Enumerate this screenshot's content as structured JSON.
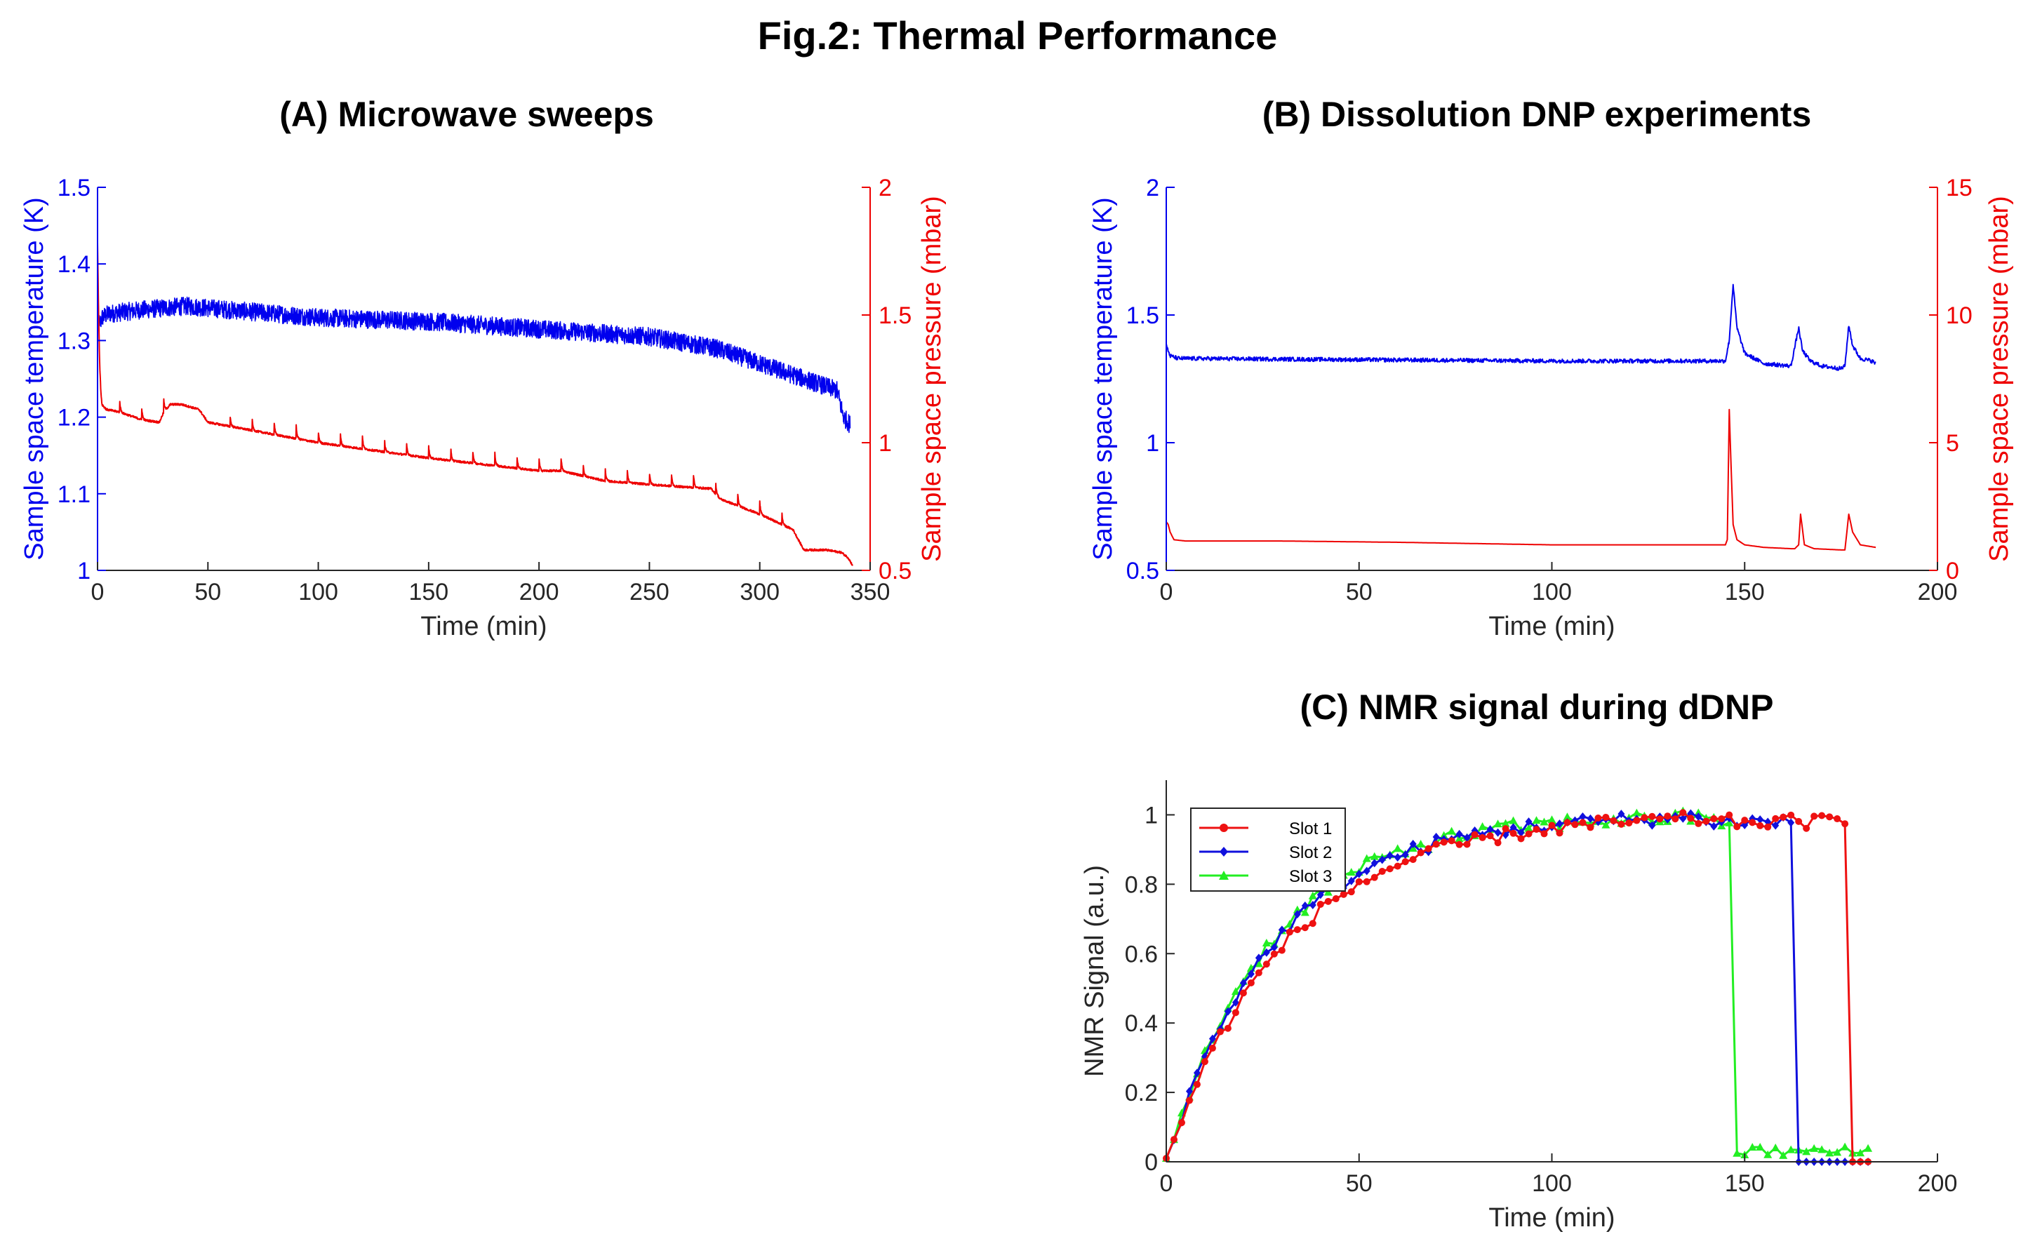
{
  "figure": {
    "title": "Fig.2: Thermal Performance"
  },
  "colors": {
    "temp": "#0000ee",
    "pressure": "#ee0000",
    "slot1": "#ee1111",
    "slot2": "#1010dd",
    "slot3": "#22ee22"
  },
  "chart_data": [
    {
      "id": "A",
      "type": "line",
      "title": "(A) Microwave sweeps",
      "xlabel": "Time (min)",
      "ylabel_left": "Sample space temperature (K)",
      "ylabel_right": "Sample space pressure (mbar)",
      "xlim": [
        0,
        350
      ],
      "xticks": [
        "0",
        "50",
        "100",
        "150",
        "200",
        "250",
        "300",
        "350"
      ],
      "xtick_values": [
        0,
        50,
        100,
        150,
        200,
        250,
        300,
        350
      ],
      "ylim_left": [
        1,
        1.5
      ],
      "yticks_left": [
        "1",
        "1.1",
        "1.2",
        "1.3",
        "1.4",
        "1.5"
      ],
      "ytick_values_left": [
        1,
        1.1,
        1.2,
        1.3,
        1.4,
        1.5
      ],
      "ylim_right": [
        0.5,
        2
      ],
      "yticks_right": [
        "0.5",
        "1",
        "1.5",
        "2"
      ],
      "ytick_values_right": [
        0.5,
        1,
        1.5,
        2
      ],
      "series": [
        {
          "name": "Temperature",
          "axis": "left",
          "color_key": "temp",
          "noise": 0.012,
          "x": [
            0,
            0.5,
            1,
            2,
            5,
            20,
            40,
            60,
            100,
            150,
            200,
            250,
            280,
            300,
            320,
            335,
            338,
            341
          ],
          "y": [
            1.37,
            1.33,
            1.32,
            1.33,
            1.335,
            1.34,
            1.345,
            1.34,
            1.33,
            1.325,
            1.315,
            1.305,
            1.29,
            1.27,
            1.25,
            1.235,
            1.2,
            1.19
          ]
        },
        {
          "name": "Pressure",
          "axis": "right",
          "color_key": "pressure",
          "noise": 0.004,
          "spikes": [
            10,
            20,
            30,
            60,
            70,
            80,
            90,
            100,
            110,
            120,
            130,
            140,
            150,
            160,
            170,
            180,
            190,
            200,
            210,
            220,
            230,
            240,
            250,
            260,
            270,
            280,
            290,
            300,
            310
          ],
          "x": [
            0,
            0.5,
            1,
            1.5,
            2,
            4,
            10,
            20,
            28,
            30,
            33,
            38,
            42,
            46,
            50,
            100,
            150,
            200,
            210,
            230,
            260,
            278,
            282,
            300,
            315,
            320,
            330,
            337,
            340,
            342
          ],
          "y": [
            1.78,
            1.5,
            1.3,
            1.2,
            1.15,
            1.13,
            1.12,
            1.09,
            1.08,
            1.12,
            1.15,
            1.15,
            1.14,
            1.13,
            1.08,
            1.0,
            0.94,
            0.89,
            0.89,
            0.85,
            0.83,
            0.82,
            0.78,
            0.72,
            0.66,
            0.58,
            0.58,
            0.57,
            0.55,
            0.52
          ]
        }
      ]
    },
    {
      "id": "B",
      "type": "line",
      "title": "(B) Dissolution DNP experiments",
      "xlabel": "Time (min)",
      "ylabel_left": "Sample space temperature (K)",
      "ylabel_right": "Sample space pressure (mbar)",
      "xlim": [
        0,
        200
      ],
      "xticks": [
        "0",
        "50",
        "100",
        "150",
        "200"
      ],
      "xtick_values": [
        0,
        50,
        100,
        150,
        200
      ],
      "ylim_left": [
        0.5,
        2
      ],
      "yticks_left": [
        "0.5",
        "1",
        "1.5",
        "2"
      ],
      "ytick_values_left": [
        0.5,
        1,
        1.5,
        2
      ],
      "ylim_right": [
        0,
        15
      ],
      "yticks_right": [
        "0",
        "5",
        "10",
        "15"
      ],
      "ytick_values_right": [
        0,
        5,
        10,
        15
      ],
      "series": [
        {
          "name": "Temperature",
          "axis": "left",
          "color_key": "temp",
          "noise": 0.008,
          "x": [
            0,
            0.5,
            1,
            3,
            50,
            100,
            145,
            146,
            147,
            148,
            150,
            155,
            162,
            164,
            165,
            167,
            170,
            175,
            176,
            177,
            178,
            180,
            183,
            184
          ],
          "y": [
            1.38,
            1.36,
            1.34,
            1.33,
            1.325,
            1.32,
            1.32,
            1.4,
            1.62,
            1.45,
            1.35,
            1.31,
            1.3,
            1.45,
            1.36,
            1.32,
            1.3,
            1.29,
            1.3,
            1.46,
            1.38,
            1.33,
            1.32,
            1.31
          ]
        },
        {
          "name": "Pressure",
          "axis": "right",
          "color_key": "pressure",
          "noise": 0,
          "x": [
            0,
            0.5,
            1,
            2,
            5,
            30,
            60,
            100,
            145,
            145.5,
            146,
            146.5,
            147,
            148,
            150,
            155,
            162,
            163,
            164,
            164.5,
            165.5,
            168,
            175,
            176,
            177,
            178,
            180,
            184
          ],
          "y": [
            1.9,
            1.8,
            1.5,
            1.2,
            1.15,
            1.15,
            1.1,
            1.0,
            1.0,
            1.2,
            6.3,
            4.0,
            1.8,
            1.2,
            1.0,
            0.9,
            0.85,
            0.85,
            1.0,
            2.2,
            1.0,
            0.85,
            0.8,
            0.8,
            2.2,
            1.5,
            1.0,
            0.9
          ]
        }
      ]
    },
    {
      "id": "C",
      "type": "line",
      "title": "(C) NMR signal during dDNP",
      "xlabel": "Time (min)",
      "ylabel": "NMR Signal (a.u.)",
      "xlim": [
        0,
        200
      ],
      "xticks": [
        "0",
        "50",
        "100",
        "150",
        "200"
      ],
      "xtick_values": [
        0,
        50,
        100,
        150,
        200
      ],
      "ylim": [
        0,
        1.1
      ],
      "yticks": [
        "0",
        "0.2",
        "0.4",
        "0.6",
        "0.8",
        "1"
      ],
      "ytick_values": [
        0,
        0.2,
        0.4,
        0.6,
        0.8,
        1
      ],
      "legend_location": "top-left",
      "series": [
        {
          "name": "Slot 1",
          "color_key": "slot1",
          "marker": "circle",
          "tau": 31,
          "end_time": 177,
          "final": 0.0
        },
        {
          "name": "Slot 2",
          "color_key": "slot2",
          "marker": "diamond",
          "tau": 28,
          "end_time": 163,
          "final": 0.0
        },
        {
          "name": "Slot 3",
          "color_key": "slot3",
          "marker": "triangle",
          "tau": 27,
          "end_time": 146,
          "final": 0.03
        }
      ]
    }
  ]
}
